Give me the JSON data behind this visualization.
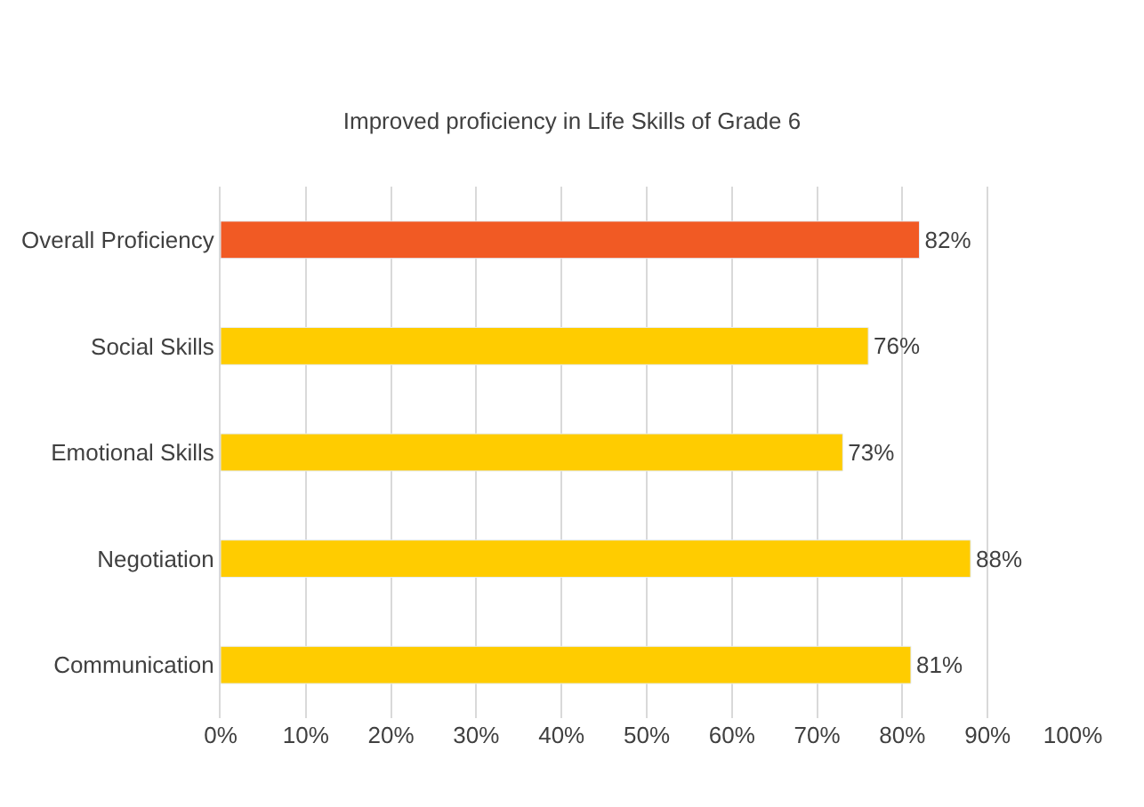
{
  "chart_data": {
    "type": "bar",
    "orientation": "horizontal",
    "title": "Improved proficiency in Life Skills of Grade 6",
    "categories": [
      "Overall Proficiency",
      "Social Skills",
      "Emotional Skills",
      "Negotiation",
      "Communication"
    ],
    "values": [
      82,
      76,
      73,
      88,
      81
    ],
    "colors": [
      "#f15a24",
      "#ffcc00",
      "#ffcc00",
      "#ffcc00",
      "#ffcc00"
    ],
    "value_labels": [
      "82%",
      "76%",
      "73%",
      "88%",
      "81%"
    ],
    "xlim": [
      0,
      100
    ],
    "xticks": [
      {
        "value": 0,
        "label": "0%"
      },
      {
        "value": 10,
        "label": "10%"
      },
      {
        "value": 20,
        "label": "20%"
      },
      {
        "value": 30,
        "label": "30%"
      },
      {
        "value": 40,
        "label": "40%"
      },
      {
        "value": 50,
        "label": "50%"
      },
      {
        "value": 60,
        "label": "60%"
      },
      {
        "value": 70,
        "label": "70%"
      },
      {
        "value": 80,
        "label": "80%"
      },
      {
        "value": 90,
        "label": "90%"
      },
      {
        "value": 100,
        "label": "100%"
      }
    ],
    "grid": "x"
  }
}
